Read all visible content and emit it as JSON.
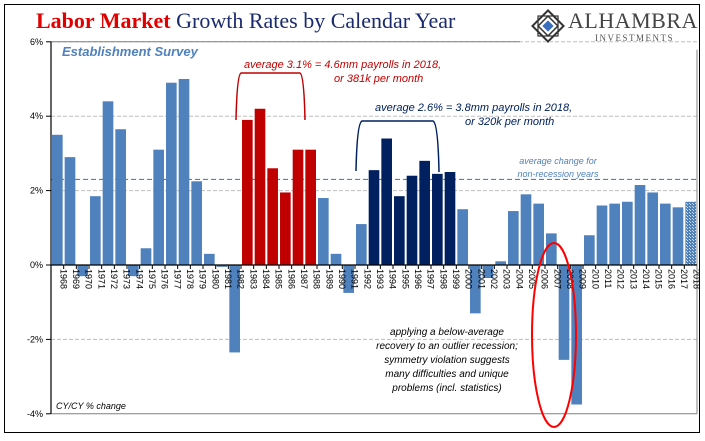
{
  "header": {
    "title_bold": "Labor Market",
    "title_rest": " Growth Rates by Calendar Year"
  },
  "logo": {
    "name": "ALHAMBRA",
    "sub": "INVESTMENTS"
  },
  "colors": {
    "base": "#4f81bd",
    "red_period": "#c00000",
    "navy_period": "#002060",
    "title_red": "#e00000",
    "title_navy": "#1a2a6e",
    "avg_line": "#4f81bd",
    "grid": "#bfbfbf",
    "ellipse": "#ff0000"
  },
  "chart_data": {
    "type": "bar",
    "title": "Labor Market Growth Rates by Calendar Year",
    "subtitle": "Establishment Survey",
    "ylabel": "CY/CY % change",
    "xlabel": "",
    "ylim": [
      -4,
      6
    ],
    "yticks": [
      -4,
      -2,
      0,
      2,
      4,
      6
    ],
    "ytick_labels": [
      "-4%",
      "-2%",
      "0%",
      "2%",
      "4%",
      "6%"
    ],
    "grid": true,
    "categories": [
      "1968",
      "1969",
      "1970",
      "1971",
      "1972",
      "1973",
      "1974",
      "1975",
      "1976",
      "1977",
      "1978",
      "1979",
      "1980",
      "1981",
      "1982",
      "1983",
      "1984",
      "1985",
      "1986",
      "1987",
      "1988",
      "1989",
      "1990",
      "1991",
      "1992",
      "1993",
      "1994",
      "1995",
      "1996",
      "1997",
      "1998",
      "1999",
      "2000",
      "2001",
      "2002",
      "2003",
      "2004",
      "2005",
      "2006",
      "2007",
      "2008",
      "2009",
      "2010",
      "2011",
      "2012",
      "2013",
      "2014",
      "2015",
      "2016",
      "2017",
      "2018"
    ],
    "values": [
      3.5,
      2.9,
      -0.3,
      1.85,
      4.4,
      3.65,
      -0.3,
      0.45,
      3.1,
      4.9,
      5.0,
      2.25,
      0.3,
      -0.05,
      -2.35,
      3.9,
      4.2,
      2.6,
      1.95,
      3.1,
      3.1,
      1.8,
      0.3,
      -0.75,
      1.1,
      2.55,
      3.4,
      1.85,
      2.4,
      2.8,
      2.45,
      2.5,
      1.5,
      -1.3,
      -0.35,
      0.1,
      1.45,
      1.9,
      1.65,
      0.85,
      -2.55,
      -3.75,
      0.8,
      1.6,
      1.65,
      1.7,
      2.15,
      1.95,
      1.65,
      1.55,
      1.7
    ],
    "bar_groups": {
      "red": [
        "1983",
        "1984",
        "1985",
        "1986",
        "1987",
        "1988"
      ],
      "navy": [
        "1993",
        "1994",
        "1995",
        "1996",
        "1997",
        "1998",
        "1999"
      ],
      "hatched": [
        "2018"
      ]
    },
    "reference_lines": [
      {
        "name": "average change for non-recession years",
        "value": 2.3,
        "style": "dashed"
      }
    ],
    "annotations": [
      {
        "id": "red_avg",
        "lines": [
          "average 3.1% = 4.6mm payrolls in 2018,",
          "or 381k per month"
        ]
      },
      {
        "id": "navy_avg",
        "lines": [
          "average 2.6%  = 3.8mm payrolls in 2018,",
          "or 320k per month"
        ]
      },
      {
        "id": "nonrec",
        "lines": [
          "average change for",
          "non-recession years"
        ]
      },
      {
        "id": "recovery",
        "lines": [
          "applying a below-average",
          "recovery to an outlier recession;",
          "symmetry violation suggests",
          "many difficulties and unique",
          "problems (incl. statistics)"
        ]
      }
    ],
    "highlight_ellipse": [
      "2008",
      "2009"
    ],
    "legend": "none"
  }
}
